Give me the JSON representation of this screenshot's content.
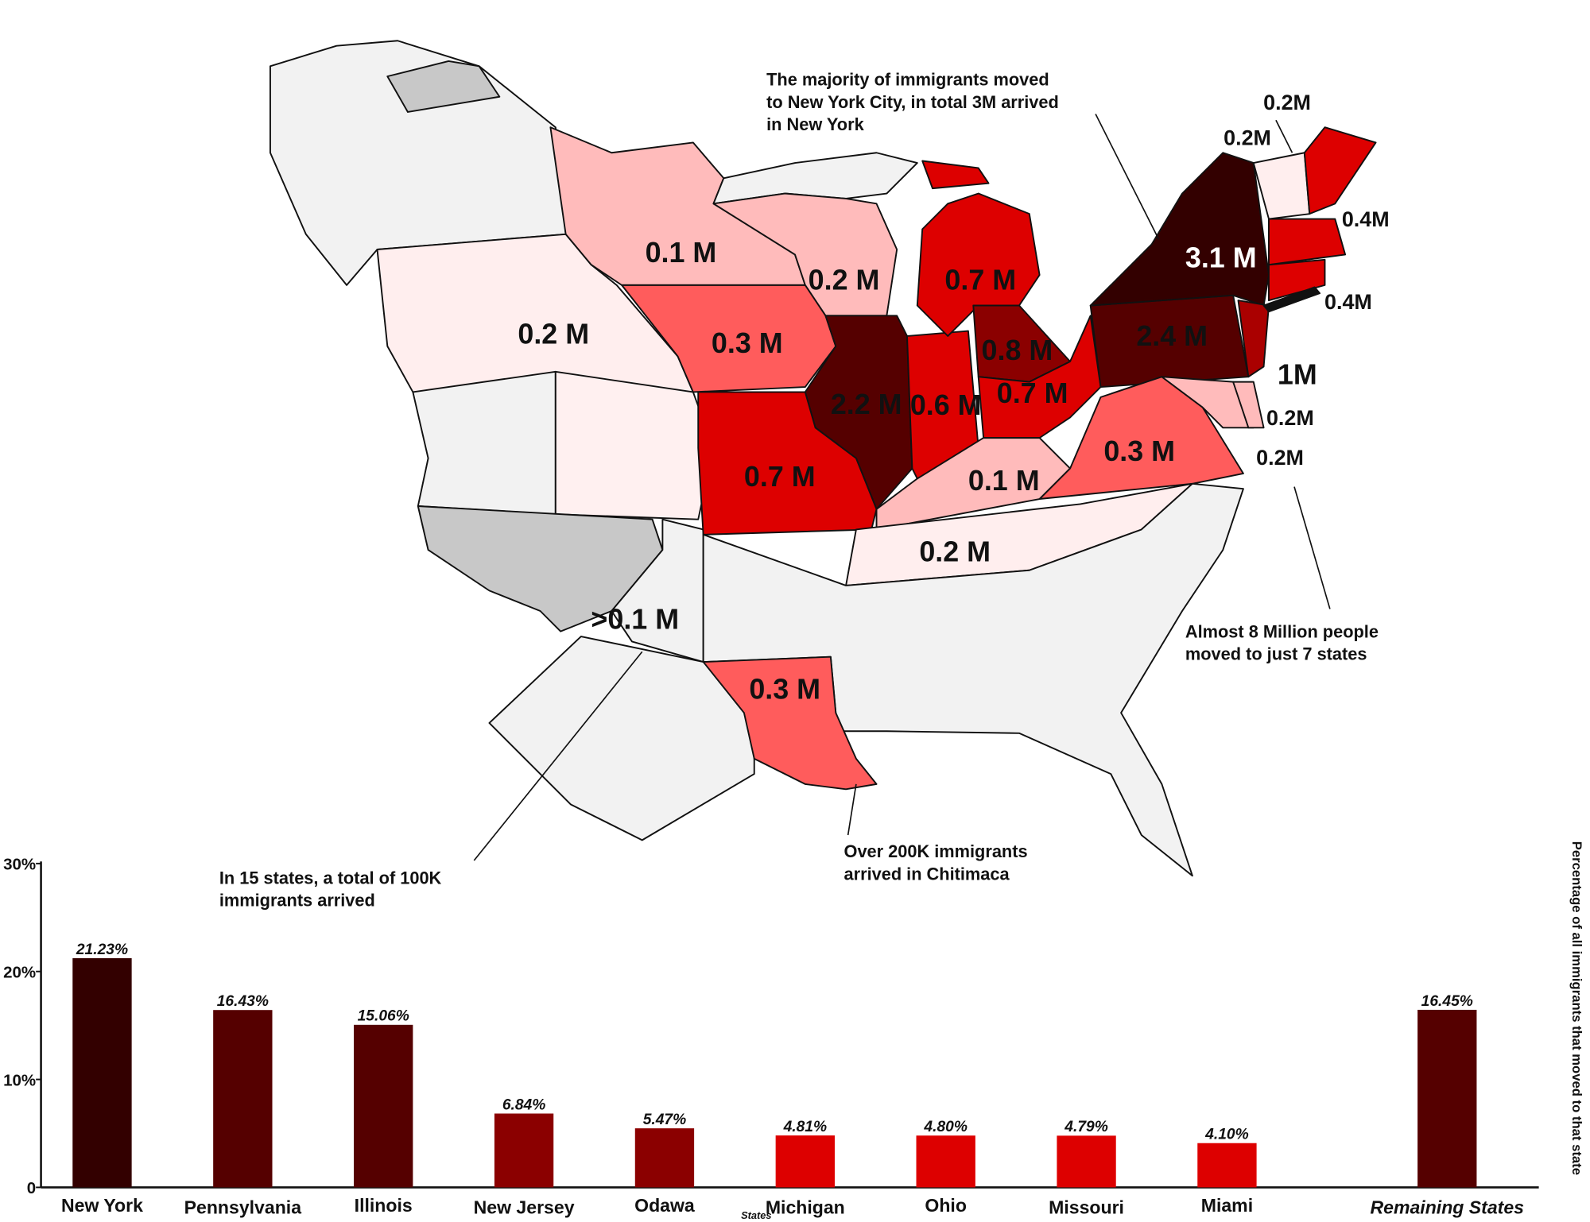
{
  "map": {
    "labels": [
      "0.1 M",
      "0.2 M",
      "0.7 M",
      "0.2 M",
      "0.3 M",
      "0.8 M",
      "2.4 M",
      "3.1 M",
      "2.2 M",
      "0.6 M",
      "0.7 M",
      "0.7 M",
      "0.1 M",
      "0.3 M",
      "0.2 M",
      ">0.1 M",
      "0.3 M",
      "1M",
      "0.2M",
      "0.2M",
      "0.4M",
      "0.4M",
      "0.2M",
      "0.2M"
    ],
    "annotations": [
      {
        "lines": [
          "The majority of immigrants moved",
          "to New York City, in total 3M arrived",
          "in New York"
        ]
      },
      {
        "lines": [
          "Almost 8 Million people",
          "moved to just 7 states"
        ]
      },
      {
        "lines": [
          "In 15 states, a total of 100K",
          "immigrants arrived"
        ]
      },
      {
        "lines": [
          "Over 200K immigrants",
          "arrived in Chitimaca"
        ]
      }
    ]
  },
  "chart_data": {
    "type": "bar",
    "x_label": "States",
    "y_label": "Percentage of all immigrants that moved to that state",
    "categories": [
      "New York",
      "Pennsylvania",
      "Illinois",
      "New Jersey",
      "Odawa",
      "Michigan",
      "Ohio",
      "Missouri",
      "Miami",
      "Remaining States"
    ],
    "values": [
      21.23,
      16.43,
      15.06,
      6.84,
      5.47,
      4.81,
      4.8,
      4.79,
      4.1,
      16.45
    ],
    "value_labels": [
      "21.23%",
      "16.43%",
      "15.06%",
      "6.84%",
      "5.47%",
      "4.81%",
      "4.80%",
      "4.79%",
      "4.10%",
      "16.45%"
    ],
    "colors": [
      "#330000",
      "#550000",
      "#550000",
      "#8b0000",
      "#8b0000",
      "#dd0000",
      "#dd0000",
      "#dd0000",
      "#dd0000",
      "#550000"
    ],
    "ylim": [
      0,
      30
    ],
    "yticks": [
      {
        "value": 0,
        "label": "0"
      },
      {
        "value": 10,
        "label": "10%"
      },
      {
        "value": 20,
        "label": "20%"
      },
      {
        "value": 30,
        "label": "30%"
      }
    ]
  }
}
